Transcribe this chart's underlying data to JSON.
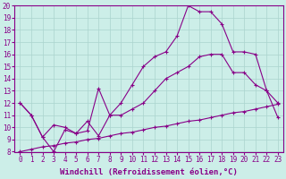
{
  "background_color": "#cceee8",
  "grid_color": "#aad4ce",
  "line_color": "#880088",
  "xlabel": "Windchill (Refroidissement éolien,°C)",
  "xlim": [
    -0.5,
    23.5
  ],
  "ylim": [
    8,
    20
  ],
  "yticks": [
    8,
    9,
    10,
    11,
    12,
    13,
    14,
    15,
    16,
    17,
    18,
    19,
    20
  ],
  "xticks": [
    0,
    1,
    2,
    3,
    4,
    5,
    6,
    7,
    8,
    9,
    10,
    11,
    12,
    13,
    14,
    15,
    16,
    17,
    18,
    19,
    20,
    21,
    22,
    23
  ],
  "line1_x": [
    0,
    1,
    2,
    3,
    4,
    5,
    6,
    7,
    8,
    9,
    10,
    11,
    12,
    13,
    14,
    15,
    16,
    17,
    18,
    19,
    20,
    21,
    22,
    23
  ],
  "line1_y": [
    8.0,
    8.2,
    8.4,
    8.5,
    8.7,
    8.8,
    9.0,
    9.1,
    9.3,
    9.5,
    9.6,
    9.8,
    10.0,
    10.1,
    10.3,
    10.5,
    10.6,
    10.8,
    11.0,
    11.2,
    11.3,
    11.5,
    11.7,
    11.9
  ],
  "line2_x": [
    0,
    1,
    2,
    3,
    4,
    5,
    6,
    7,
    8,
    9,
    10,
    11,
    12,
    13,
    14,
    15,
    16,
    17,
    18,
    19,
    20,
    21,
    22,
    23
  ],
  "line2_y": [
    12.0,
    11.0,
    9.2,
    10.2,
    10.0,
    9.5,
    9.7,
    13.2,
    11.0,
    11.0,
    11.5,
    12.0,
    13.0,
    14.0,
    14.5,
    15.0,
    15.8,
    16.0,
    16.0,
    14.5,
    14.5,
    13.5,
    13.0,
    12.0
  ],
  "line3_x": [
    0,
    1,
    2,
    3,
    4,
    5,
    6,
    7,
    8,
    9,
    10,
    11,
    12,
    13,
    14,
    15,
    16,
    17,
    18,
    19,
    20,
    21,
    22,
    23
  ],
  "line3_y": [
    12.0,
    11.0,
    9.2,
    8.0,
    9.8,
    9.5,
    10.5,
    9.3,
    11.0,
    12.0,
    13.5,
    15.0,
    15.8,
    16.2,
    17.5,
    20.0,
    19.5,
    19.5,
    18.5,
    16.2,
    16.2,
    16.0,
    13.0,
    10.8
  ],
  "marker_size": 2.5,
  "line_width": 0.8,
  "xlabel_fontsize": 6.5,
  "tick_fontsize": 5.5
}
